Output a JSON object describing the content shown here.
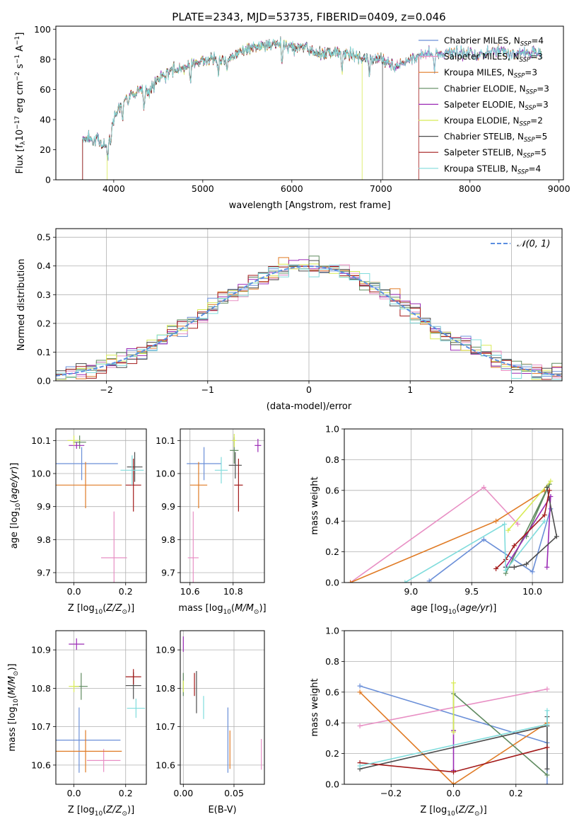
{
  "figure": {
    "title": "PLATE=2343, MJD=53735, FIBERID=0409, z=0.046"
  },
  "colors": {
    "Chabrier MILES": "#6a8fd8",
    "Salpeter MILES": "#e88fc4",
    "Kroupa MILES": "#e07b25",
    "Chabrier ELODIE": "#5f8a5f",
    "Salpeter ELODIE": "#9b2ab5",
    "Kroupa ELODIE": "#d8ea55",
    "Chabrier STELIB": "#4d4d4d",
    "Salpeter STELIB": "#a31a1a",
    "Kroupa STELIB": "#80dcdc",
    "normal": "#5b8ee0"
  },
  "chart_data": [
    {
      "type": "line",
      "panel": "spectrum",
      "xlabel": "wavelength [Angstrom, rest frame]",
      "ylabel": "Flux [f_λ 10^-17 erg cm^-2 s^-1 A^-1]",
      "ylabel_display": "Flux [fλ10⁻¹⁷ erg cm⁻² s⁻¹ A⁻¹]",
      "xlim": [
        3350,
        9050
      ],
      "ylim": [
        0,
        102
      ],
      "xticks": [
        "4000",
        "5000",
        "6000",
        "7000",
        "8000",
        "9000"
      ],
      "yticks": [
        "0",
        "20",
        "40",
        "60",
        "80",
        "100"
      ],
      "legend_position": "top-right",
      "legend": [
        {
          "label": "Chabrier MILES, N_SSP=4",
          "display": "Chabrier MILES, N",
          "sub": "SSP",
          "tail": "=4"
        },
        {
          "label": "Salpeter MILES, N_SSP=3",
          "display": "Salpeter MILES, N",
          "sub": "SSP",
          "tail": "=3"
        },
        {
          "label": "Kroupa MILES, N_SSP=3",
          "display": "Kroupa MILES, N",
          "sub": "SSP",
          "tail": "=3"
        },
        {
          "label": "Chabrier ELODIE, N_SSP=3",
          "display": "Chabrier ELODIE, N",
          "sub": "SSP",
          "tail": "=3"
        },
        {
          "label": "Salpeter ELODIE, N_SSP=3",
          "display": "Salpeter ELODIE, N",
          "sub": "SSP",
          "tail": "=3"
        },
        {
          "label": "Kroupa ELODIE, N_SSP=2",
          "display": "Kroupa ELODIE, N",
          "sub": "SSP",
          "tail": "=2"
        },
        {
          "label": "Chabrier STELIB, N_SSP=5",
          "display": "Chabrier STELIB, N",
          "sub": "SSP",
          "tail": "=5"
        },
        {
          "label": "Salpeter STELIB, N_SSP=5",
          "display": "Salpeter STELIB, N",
          "sub": "SSP",
          "tail": "=5"
        },
        {
          "label": "Kroupa STELIB, N_SSP=4",
          "display": "Kroupa STELIB, N",
          "sub": "SSP",
          "tail": "=4"
        }
      ],
      "continuum": {
        "x": [
          3650,
          3800,
          3920,
          4000,
          4100,
          4200,
          4300,
          4400,
          4500,
          4600,
          4700,
          4800,
          4900,
          5000,
          5100,
          5200,
          5300,
          5400,
          5500,
          5600,
          5700,
          5800,
          5900,
          6000,
          6100,
          6200,
          6300,
          6400,
          6500,
          6600,
          6700,
          6800,
          6900,
          7000,
          7100,
          7200,
          7300,
          7400,
          7500,
          7600,
          7700,
          7800,
          7900,
          8000,
          8100,
          8200,
          8300,
          8400,
          8500,
          8600,
          8700,
          8800
        ],
        "y": [
          28,
          27,
          22,
          42,
          52,
          56,
          60,
          58,
          67,
          71,
          74,
          75,
          78,
          79,
          80,
          80,
          82,
          84,
          87,
          88,
          89,
          90,
          90,
          88,
          88,
          86,
          84,
          84,
          85,
          84,
          82,
          81,
          80,
          80,
          77,
          76,
          79,
          82,
          84,
          84,
          84,
          85,
          84,
          84,
          83,
          85,
          86,
          85,
          84,
          85,
          84,
          84
        ]
      },
      "cutoffs": [
        {
          "model": "Kroupa ELODIE",
          "start": 3920,
          "end": 6790
        },
        {
          "model": "Salpeter STELIB",
          "start": 3650,
          "end": 7430
        },
        {
          "model": "Chabrier STELIB",
          "start": 3650,
          "end": 7020
        }
      ]
    },
    {
      "type": "histogram",
      "panel": "residuals",
      "xlabel": "(data-model)/error",
      "ylabel": "Normed distribution",
      "xlim": [
        -2.5,
        2.5
      ],
      "ylim": [
        0,
        0.53
      ],
      "xticks": [
        "−2",
        "−1",
        "0",
        "1",
        "2"
      ],
      "yticks": [
        "0.0",
        "0.1",
        "0.2",
        "0.3",
        "0.4",
        "0.5"
      ],
      "reference": {
        "label": "𝒩(0, 1)",
        "mean": 0,
        "sigma": 1
      },
      "legend_position": "top-right"
    },
    {
      "type": "scatter",
      "panel": "age-vs-Z",
      "xlabel": "Z [log10(Z/Z⊙)]",
      "ylabel": "age [log10(age/yr)]",
      "xlim": [
        -0.07,
        0.28
      ],
      "ylim": [
        9.67,
        10.135
      ],
      "xticks": [
        "0.0",
        "0.2"
      ],
      "yticks": [
        "9.7",
        "9.8",
        "9.9",
        "10.0",
        "10.1"
      ],
      "points": [
        {
          "model": "Chabrier MILES",
          "x": 0.03,
          "y": 10.03,
          "xerr": 0.14,
          "yerr": 0.05
        },
        {
          "model": "Salpeter MILES",
          "x": 0.155,
          "y": 9.745,
          "xerr": 0.05,
          "yerr": 0.14
        },
        {
          "model": "Kroupa MILES",
          "x": 0.045,
          "y": 9.965,
          "xerr": 0.14,
          "yerr": 0.07
        },
        {
          "model": "Chabrier ELODIE",
          "x": 0.022,
          "y": 10.095,
          "xerr": 0.025,
          "yerr": 0.02
        },
        {
          "model": "Salpeter ELODIE",
          "x": 0.01,
          "y": 10.085,
          "xerr": 0.03,
          "yerr": 0.01
        },
        {
          "model": "Kroupa ELODIE",
          "x": 0.0,
          "y": 10.1,
          "xerr": 0.025,
          "yerr": 0.015
        },
        {
          "model": "Chabrier STELIB",
          "x": 0.235,
          "y": 10.02,
          "xerr": 0.03,
          "yerr": 0.045
        },
        {
          "model": "Salpeter STELIB",
          "x": 0.23,
          "y": 9.965,
          "xerr": 0.03,
          "yerr": 0.08
        },
        {
          "model": "Kroupa STELIB",
          "x": 0.225,
          "y": 10.01,
          "xerr": 0.045,
          "yerr": 0.045
        }
      ]
    },
    {
      "type": "scatter",
      "panel": "age-vs-mass",
      "xlabel": "mass [log10(M/M⊙)]",
      "ylabel": "",
      "xlim": [
        10.555,
        10.945
      ],
      "ylim": [
        9.67,
        10.135
      ],
      "xticks": [
        "10.6",
        "10.8"
      ],
      "yticks": [
        "9.7",
        "9.8",
        "9.9",
        "10.0",
        "10.1"
      ],
      "points": [
        {
          "model": "Chabrier MILES",
          "x": 10.665,
          "y": 10.03,
          "xerr": 0.08,
          "yerr": 0.05
        },
        {
          "model": "Salpeter MILES",
          "x": 10.615,
          "y": 9.745,
          "xerr": 0.025,
          "yerr": 0.14
        },
        {
          "model": "Kroupa MILES",
          "x": 10.64,
          "y": 9.965,
          "xerr": 0.04,
          "yerr": 0.07
        },
        {
          "model": "Chabrier ELODIE",
          "x": 10.805,
          "y": 10.07,
          "xerr": 0.02,
          "yerr": 0.04
        },
        {
          "model": "Salpeter ELODIE",
          "x": 10.915,
          "y": 10.085,
          "xerr": 0.015,
          "yerr": 0.02
        },
        {
          "model": "Kroupa ELODIE",
          "x": 10.805,
          "y": 10.1,
          "xerr": 0.01,
          "yerr": 0.02
        },
        {
          "model": "Chabrier STELIB",
          "x": 10.81,
          "y": 10.025,
          "xerr": 0.03,
          "yerr": 0.04
        },
        {
          "model": "Salpeter STELIB",
          "x": 10.825,
          "y": 9.965,
          "xerr": 0.02,
          "yerr": 0.08
        },
        {
          "model": "Kroupa STELIB",
          "x": 10.745,
          "y": 10.01,
          "xerr": 0.03,
          "yerr": 0.04
        }
      ]
    },
    {
      "type": "line",
      "panel": "mass-weight-vs-age",
      "xlabel": "age [log10(age/yr)]",
      "ylabel": "mass weight",
      "xlim": [
        8.45,
        10.25
      ],
      "ylim": [
        0,
        1.0
      ],
      "xticks": [
        "9.0",
        "9.5",
        "10.0"
      ],
      "yticks": [
        "0.0",
        "0.2",
        "0.4",
        "0.6",
        "0.8",
        "1.0"
      ],
      "series": [
        {
          "model": "Chabrier MILES",
          "x": [
            9.15,
            9.6,
            10.0,
            10.15
          ],
          "y": [
            0.01,
            0.28,
            0.07,
            0.48
          ]
        },
        {
          "model": "Salpeter MILES",
          "x": [
            8.5,
            9.6,
            9.88
          ],
          "y": [
            0.0,
            0.62,
            0.38
          ]
        },
        {
          "model": "Kroupa MILES",
          "x": [
            8.5,
            9.7,
            10.1
          ],
          "y": [
            0.0,
            0.4,
            0.6
          ]
        },
        {
          "model": "Chabrier ELODIE",
          "x": [
            9.78,
            10.14,
            9.95
          ],
          "y": [
            0.06,
            0.64,
            0.3
          ]
        },
        {
          "model": "Salpeter ELODIE",
          "x": [
            9.78,
            10.15,
            10.12
          ],
          "y": [
            0.1,
            0.56,
            0.1
          ]
        },
        {
          "model": "Kroupa ELODIE",
          "x": [
            9.8,
            10.15
          ],
          "y": [
            0.34,
            0.66
          ]
        },
        {
          "model": "Chabrier STELIB",
          "x": [
            9.78,
            9.85,
            9.95,
            10.2,
            10.12
          ],
          "y": [
            0.1,
            0.1,
            0.12,
            0.3,
            0.62
          ]
        },
        {
          "model": "Salpeter STELIB",
          "x": [
            9.7,
            9.78,
            9.85,
            10.1,
            10.14
          ],
          "y": [
            0.09,
            0.15,
            0.24,
            0.44,
            0.6
          ]
        },
        {
          "model": "Kroupa STELIB",
          "x": [
            8.95,
            9.77,
            9.78,
            10.1
          ],
          "y": [
            0.0,
            0.38,
            0.08,
            0.4
          ]
        }
      ]
    },
    {
      "type": "scatter",
      "panel": "mass-vs-Z",
      "xlabel": "Z [log10(Z/Z⊙)]",
      "ylabel": "mass [log10(M/M⊙)]",
      "xlim": [
        -0.07,
        0.28
      ],
      "ylim": [
        10.55,
        10.95
      ],
      "xticks": [
        "0.0",
        "0.2"
      ],
      "yticks": [
        "10.6",
        "10.7",
        "10.8",
        "10.9"
      ],
      "points": [
        {
          "model": "Chabrier MILES",
          "x": 0.02,
          "y": 10.665,
          "xerr": 0.16,
          "yerr": 0.085
        },
        {
          "model": "Salpeter MILES",
          "x": 0.115,
          "y": 10.612,
          "xerr": 0.065,
          "yerr": 0.03
        },
        {
          "model": "Kroupa MILES",
          "x": 0.045,
          "y": 10.636,
          "xerr": 0.14,
          "yerr": 0.055
        },
        {
          "model": "Chabrier ELODIE",
          "x": 0.028,
          "y": 10.805,
          "xerr": 0.025,
          "yerr": 0.035
        },
        {
          "model": "Salpeter ELODIE",
          "x": 0.01,
          "y": 10.915,
          "xerr": 0.03,
          "yerr": 0.015
        },
        {
          "model": "Kroupa ELODIE",
          "x": 0.0,
          "y": 10.805,
          "xerr": 0.02,
          "yerr": 0.015
        },
        {
          "model": "Chabrier STELIB",
          "x": 0.23,
          "y": 10.807,
          "xerr": 0.03,
          "yerr": 0.035
        },
        {
          "model": "Salpeter STELIB",
          "x": 0.23,
          "y": 10.83,
          "xerr": 0.03,
          "yerr": 0.02
        },
        {
          "model": "Kroupa STELIB",
          "x": 0.24,
          "y": 10.748,
          "xerr": 0.035,
          "yerr": 0.025
        }
      ]
    },
    {
      "type": "scatter",
      "panel": "mass-vs-EBV",
      "xlabel": "E(B-V)",
      "ylabel": "",
      "xlim": [
        -0.003,
        0.08
      ],
      "ylim": [
        10.55,
        10.95
      ],
      "xticks": [
        "0.00",
        "0.05"
      ],
      "yticks": [
        "10.6",
        "10.7",
        "10.8",
        "10.9"
      ],
      "points": [
        {
          "model": "Chabrier MILES",
          "x": 0.044,
          "y": 10.665,
          "xerr": 0,
          "yerr": 0.085
        },
        {
          "model": "Salpeter MILES",
          "x": 0.077,
          "y": 10.628,
          "xerr": 0,
          "yerr": 0.04
        },
        {
          "model": "Kroupa MILES",
          "x": 0.046,
          "y": 10.64,
          "xerr": 0,
          "yerr": 0.05
        },
        {
          "model": "Chabrier ELODIE",
          "x": 0.0,
          "y": 10.81,
          "xerr": 0,
          "yerr": 0.03
        },
        {
          "model": "Salpeter ELODIE",
          "x": 0.0,
          "y": 10.915,
          "xerr": 0,
          "yerr": 0.02
        },
        {
          "model": "Kroupa ELODIE",
          "x": 0.0,
          "y": 10.805,
          "xerr": 0,
          "yerr": 0.015
        },
        {
          "model": "Chabrier STELIB",
          "x": 0.013,
          "y": 10.79,
          "xerr": 0,
          "yerr": 0.055
        },
        {
          "model": "Salpeter STELIB",
          "x": 0.011,
          "y": 10.81,
          "xerr": 0,
          "yerr": 0.03
        },
        {
          "model": "Kroupa STELIB",
          "x": 0.02,
          "y": 10.75,
          "xerr": 0,
          "yerr": 0.03
        }
      ]
    },
    {
      "type": "line",
      "panel": "mass-weight-vs-Z",
      "xlabel": "Z [log10(Z/Z⊙)]",
      "ylabel": "mass weight",
      "xlim": [
        -0.35,
        0.35
      ],
      "ylim": [
        0,
        1.0
      ],
      "xticks": [
        "−0.2",
        "0.0",
        "0.2"
      ],
      "yticks": [
        "0.0",
        "0.2",
        "0.4",
        "0.6",
        "0.8",
        "1.0"
      ],
      "series": [
        {
          "model": "Chabrier MILES",
          "x": [
            -0.3,
            0.3,
            0.3
          ],
          "y": [
            0.64,
            0.27,
            0.0
          ]
        },
        {
          "model": "Salpeter MILES",
          "x": [
            -0.3,
            0.3
          ],
          "y": [
            0.38,
            0.62
          ]
        },
        {
          "model": "Kroupa MILES",
          "x": [
            -0.3,
            0.0,
            0.3
          ],
          "y": [
            0.6,
            0.0,
            0.4
          ]
        },
        {
          "model": "Chabrier ELODIE",
          "x": [
            0.0,
            0.0,
            0.3
          ],
          "y": [
            0.35,
            0.59,
            0.06
          ]
        },
        {
          "model": "Salpeter ELODIE",
          "x": [
            0.0,
            0.0
          ],
          "y": [
            0.09,
            0.35
          ]
        },
        {
          "model": "Kroupa ELODIE",
          "x": [
            0.0,
            0.0
          ],
          "y": [
            0.34,
            0.66
          ]
        },
        {
          "model": "Chabrier STELIB",
          "x": [
            -0.3,
            0.3,
            0.3,
            0.3
          ],
          "y": [
            0.1,
            0.38,
            0.1,
            0.44
          ]
        },
        {
          "model": "Salpeter STELIB",
          "x": [
            -0.3,
            0.0,
            0.3
          ],
          "y": [
            0.14,
            0.08,
            0.24
          ]
        },
        {
          "model": "Kroupa STELIB",
          "x": [
            -0.3,
            0.3,
            0.3
          ],
          "y": [
            0.12,
            0.39,
            0.48
          ]
        }
      ]
    }
  ]
}
